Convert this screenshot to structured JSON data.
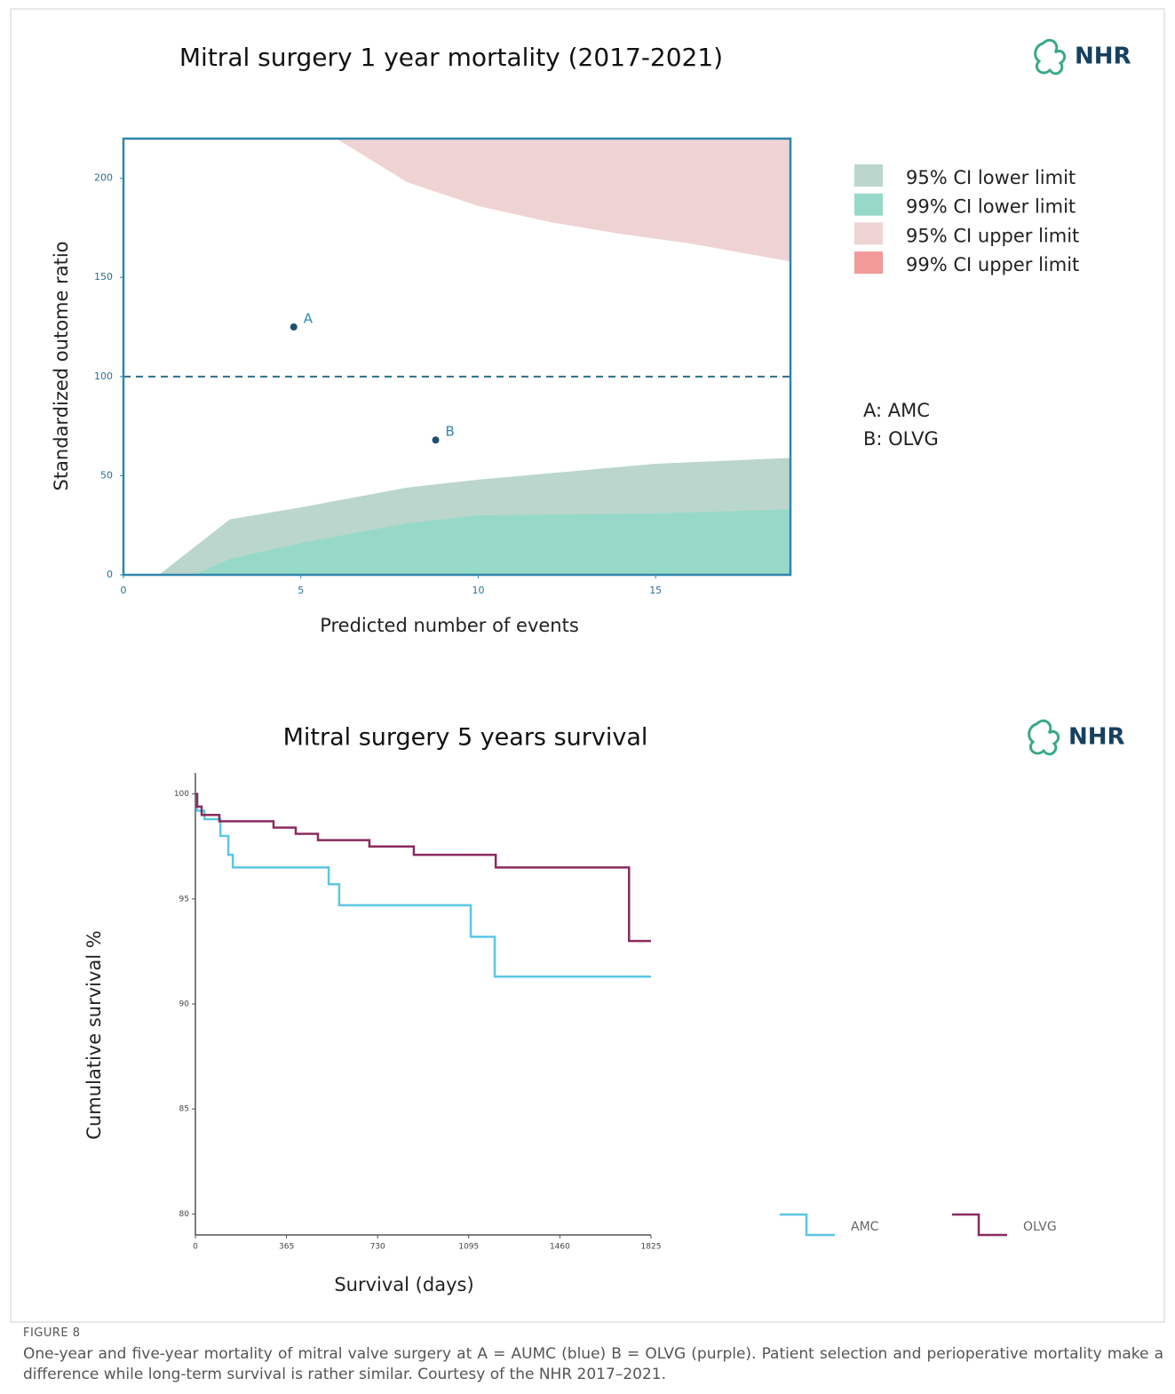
{
  "chart_data": [
    {
      "type": "funnel",
      "title": "Mitral surgery 1 year mortality (2017-2021)",
      "logo": "NHR",
      "x_label": "Predicted number of events",
      "y_label": "Standardized outome ratio",
      "xlim": [
        0,
        18.8
      ],
      "ylim": [
        0,
        220
      ],
      "xticks": [
        0,
        5,
        10,
        15
      ],
      "yticks": [
        0,
        50,
        100,
        150,
        200
      ],
      "reference_line": 100,
      "bands": [
        {
          "name": "95% CI lower limit",
          "color": "#bad6cd",
          "fill": "below",
          "x": [
            1,
            3,
            5,
            8,
            10,
            15,
            18.8
          ],
          "values": [
            0,
            28,
            34,
            44,
            48,
            56,
            59
          ]
        },
        {
          "name": "99% CI lower limit",
          "color": "#97d9c8",
          "fill": "below",
          "x": [
            2,
            3,
            5,
            8,
            10,
            15,
            18.8
          ],
          "values": [
            0,
            8,
            16,
            26,
            30,
            31,
            33
          ]
        },
        {
          "name": "95% CI upper limit",
          "color": "#efd3d3",
          "fill": "above",
          "x": [
            6,
            8,
            10,
            12,
            14,
            16,
            18.8
          ],
          "values": [
            220,
            198,
            186,
            178,
            172,
            167,
            158
          ]
        },
        {
          "name": "99% CI upper limit",
          "color": "#f19a98",
          "fill": "above",
          "x": [],
          "values": []
        }
      ],
      "points": {
        "color": "#1d4f6f",
        "labels": [
          "A",
          "B"
        ],
        "x": [
          4.8,
          8.8
        ],
        "values": [
          125,
          68
        ]
      },
      "notes": [
        "A: AMC",
        "B: OLVG"
      ]
    },
    {
      "type": "step",
      "title": "Mitral surgery 5 years survival",
      "logo": "NHR",
      "x_label": "Survival (days)",
      "y_label": "Cumulative survival %",
      "xlim": [
        0,
        1825
      ],
      "ylim": [
        79,
        101
      ],
      "xticks": [
        0,
        365,
        730,
        1095,
        1460,
        1825
      ],
      "yticks": [
        80,
        85,
        90,
        95,
        100
      ],
      "series": [
        {
          "name": "AMC",
          "color": "#5cc6e4",
          "x": [
            0,
            7,
            36,
            100,
            132,
            150,
            534,
            576,
            1103,
            1199,
            1825
          ],
          "values": [
            100,
            99.2,
            98.8,
            98.0,
            97.1,
            96.5,
            95.7,
            94.7,
            93.2,
            91.3,
            91.3
          ]
        },
        {
          "name": "OLVG",
          "color": "#8a2a5d",
          "x": [
            0,
            7,
            25,
            96,
            313,
            402,
            491,
            697,
            875,
            1203,
            1737,
            1825
          ],
          "values": [
            100,
            99.4,
            99.0,
            98.7,
            98.4,
            98.1,
            97.8,
            97.5,
            97.1,
            96.5,
            93.0,
            93.0
          ]
        }
      ]
    }
  ],
  "figure_label": "FIGURE 8",
  "caption": "One-year and five-year mortality of mitral valve surgery at A = AUMC (blue) B = OLVG (purple). Patient selection and perioperative mortality make a difference while long-term survival is rather similar. Courtesy of the NHR 2017–2021."
}
